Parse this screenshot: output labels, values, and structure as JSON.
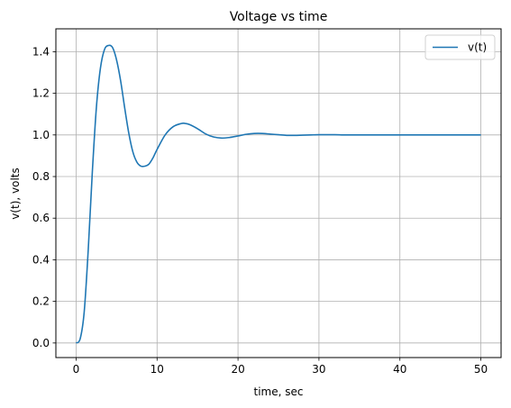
{
  "chart_data": {
    "type": "line",
    "title": "Voltage vs time",
    "xlabel": "time, sec",
    "ylabel": "v(t), volts",
    "xlim": [
      -2.5,
      52.5
    ],
    "ylim": [
      -0.07,
      1.51
    ],
    "xticks": [
      0,
      10,
      20,
      30,
      40,
      50
    ],
    "yticks": [
      0.0,
      0.2,
      0.4,
      0.6,
      0.8,
      1.0,
      1.2,
      1.4
    ],
    "xtick_labels": [
      "0",
      "10",
      "20",
      "30",
      "40",
      "50"
    ],
    "ytick_labels": [
      "0.0",
      "0.2",
      "0.4",
      "0.6",
      "0.8",
      "1.0",
      "1.2",
      "1.4"
    ],
    "grid": true,
    "legend_position": "top-right",
    "series": [
      {
        "name": "v(t)",
        "color": "#1f77b4",
        "x": [
          0,
          0.5,
          1,
          1.5,
          2,
          2.5,
          3,
          3.5,
          4,
          4.5,
          5,
          5.5,
          6,
          6.5,
          7,
          7.5,
          8,
          8.5,
          9,
          9.5,
          10,
          11,
          12,
          13,
          13.5,
          14,
          15,
          16,
          17,
          18,
          19,
          20,
          21,
          22,
          23,
          24,
          25,
          26,
          27,
          28,
          29,
          30,
          31,
          32,
          33,
          34,
          35,
          36,
          38,
          40,
          42,
          44,
          46,
          48,
          50
        ],
        "y": [
          0,
          0.02,
          0.15,
          0.45,
          0.82,
          1.13,
          1.32,
          1.41,
          1.43,
          1.42,
          1.36,
          1.26,
          1.13,
          1.01,
          0.92,
          0.87,
          0.85,
          0.85,
          0.86,
          0.89,
          0.93,
          1.0,
          1.04,
          1.055,
          1.055,
          1.05,
          1.03,
          1.005,
          0.99,
          0.985,
          0.988,
          0.995,
          1.003,
          1.007,
          1.007,
          1.004,
          1.001,
          0.998,
          0.998,
          0.999,
          1.0,
          1.001,
          1.001,
          1.001,
          1.0,
          1.0,
          1.0,
          1.0,
          1.0,
          1.0,
          1.0,
          1.0,
          1.0,
          1.0,
          1.0
        ]
      }
    ]
  }
}
